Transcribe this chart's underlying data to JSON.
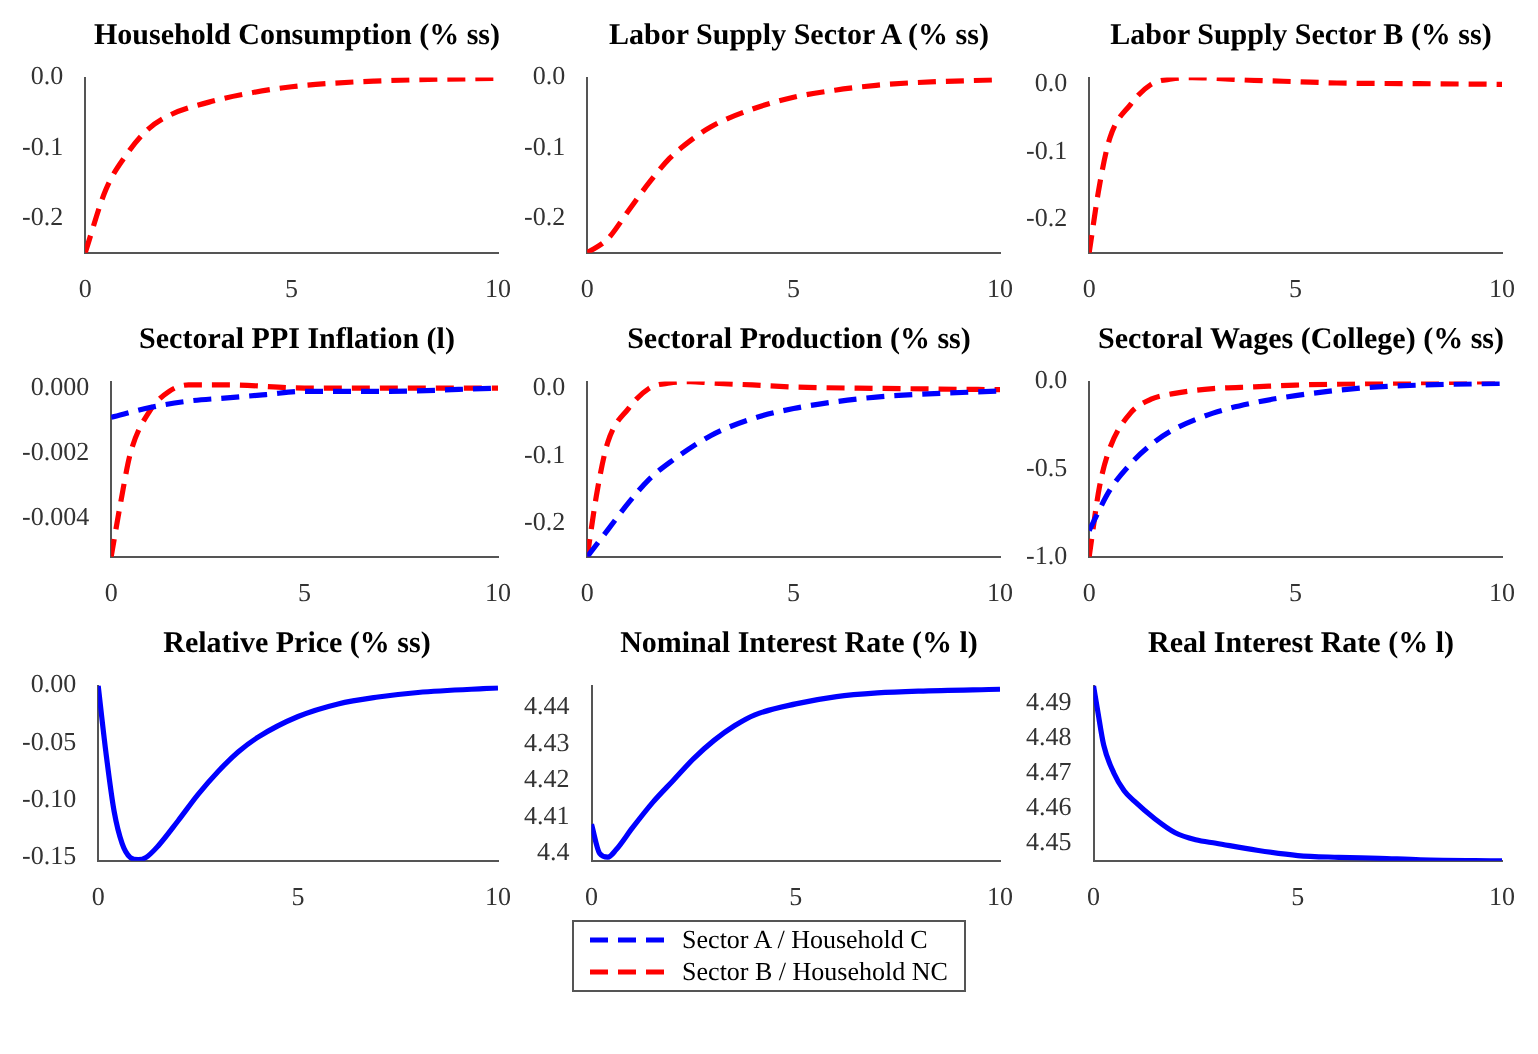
{
  "chart_data": [
    {
      "type": "line",
      "title": "Household Consumption (% ss)",
      "xlim": [
        0,
        10
      ],
      "xticks": [
        0,
        5,
        10
      ],
      "ylim": [
        -0.25,
        0.0
      ],
      "yticks": [
        -0.2,
        -0.1,
        {
          "value": 0,
          "label": "0.0"
        }
      ],
      "grid": false,
      "marker": "none",
      "legend": false,
      "series": [
        {
          "color": "#ff0000",
          "line_style": "dashed",
          "x": [
            0,
            0.5,
            1,
            1.5,
            2,
            3,
            4,
            5,
            6,
            7,
            8,
            10
          ],
          "values": [
            -0.25,
            -0.16,
            -0.11,
            -0.075,
            -0.055,
            -0.035,
            -0.022,
            -0.013,
            -0.008,
            -0.005,
            -0.003,
            -0.001
          ]
        }
      ]
    },
    {
      "type": "line",
      "title": "Labor Supply Sector A (% ss)",
      "xlim": [
        0,
        10
      ],
      "xticks": [
        0,
        5,
        10
      ],
      "ylim": [
        -0.25,
        0.0
      ],
      "yticks": [
        -0.2,
        -0.1,
        {
          "value": 0,
          "label": "0.0"
        }
      ],
      "grid": false,
      "marker": "none",
      "legend": false,
      "series": [
        {
          "color": "#ff0000",
          "line_style": "dashed",
          "x": [
            0,
            0.5,
            1,
            1.5,
            2,
            2.5,
            3,
            4,
            5,
            6,
            7,
            8,
            10
          ],
          "values": [
            -0.25,
            -0.23,
            -0.19,
            -0.15,
            -0.115,
            -0.09,
            -0.07,
            -0.045,
            -0.028,
            -0.018,
            -0.011,
            -0.007,
            -0.003
          ]
        }
      ]
    },
    {
      "type": "line",
      "title": "Labor Supply Sector B (% ss)",
      "xlim": [
        0,
        10
      ],
      "xticks": [
        0,
        5,
        10
      ],
      "ylim": [
        -0.25,
        0.01
      ],
      "yticks": [
        -0.2,
        -0.1,
        {
          "value": 0,
          "label": "0.0"
        }
      ],
      "grid": false,
      "marker": "none",
      "legend": false,
      "series": [
        {
          "color": "#ff0000",
          "line_style": "dashed",
          "x": [
            0,
            0.25,
            0.5,
            1,
            1.5,
            2,
            2.5,
            3,
            4,
            5,
            6,
            8,
            10
          ],
          "values": [
            -0.25,
            -0.15,
            -0.08,
            -0.03,
            0.0,
            0.008,
            0.01,
            0.009,
            0.006,
            0.004,
            0.002,
            0.001,
            0.0
          ]
        }
      ]
    },
    {
      "type": "line",
      "title": "Sectoral PPI Inflation (l)",
      "xlim": [
        0,
        10
      ],
      "xticks": [
        0,
        5,
        10
      ],
      "ylim": [
        -0.0052,
        0.0002
      ],
      "yticks": [
        -0.004,
        -0.002,
        {
          "value": 0,
          "label": "0.000"
        }
      ],
      "grid": false,
      "marker": "none",
      "legend": false,
      "series": [
        {
          "color": "#0000ff",
          "line_style": "dashed",
          "x": [
            0,
            1,
            2,
            3,
            4,
            5,
            7,
            10
          ],
          "values": [
            -0.0009,
            -0.0006,
            -0.0004,
            -0.0003,
            -0.0002,
            -0.0001,
            -0.0001,
            0.0
          ]
        },
        {
          "color": "#ff0000",
          "line_style": "dashed",
          "x": [
            0,
            0.25,
            0.5,
            1,
            1.5,
            2,
            2.5,
            3,
            5,
            10
          ],
          "values": [
            -0.0052,
            -0.0035,
            -0.002,
            -0.0007,
            -0.0001,
            0.0001,
            0.0001,
            0.0001,
            0.0,
            0.0
          ]
        }
      ]
    },
    {
      "type": "line",
      "title": "Sectoral Production (% ss)",
      "xlim": [
        0,
        10
      ],
      "xticks": [
        0,
        5,
        10
      ],
      "ylim": [
        -0.25,
        0.01
      ],
      "yticks": [
        -0.2,
        -0.1,
        {
          "value": 0,
          "label": "0.0"
        }
      ],
      "grid": false,
      "marker": "none",
      "legend": "bottom",
      "series": [
        {
          "name": "Sector A / Household C",
          "color": "#0000ff",
          "line_style": "dashed",
          "x": [
            0,
            0.5,
            1,
            1.5,
            2,
            3,
            4,
            5,
            6,
            7,
            8,
            10
          ],
          "values": [
            -0.25,
            -0.21,
            -0.17,
            -0.135,
            -0.11,
            -0.07,
            -0.045,
            -0.03,
            -0.02,
            -0.013,
            -0.009,
            -0.004
          ]
        },
        {
          "name": "Sector B / Household NC",
          "color": "#ff0000",
          "line_style": "dashed",
          "x": [
            0,
            0.25,
            0.5,
            1,
            1.5,
            2,
            2.5,
            3,
            4,
            5,
            7,
            10
          ],
          "values": [
            -0.25,
            -0.15,
            -0.08,
            -0.03,
            0.0,
            0.008,
            0.01,
            0.008,
            0.005,
            0.002,
            0.0,
            -0.002
          ]
        }
      ]
    },
    {
      "type": "line",
      "title": "Sectoral Wages (College) (% ss)",
      "xlim": [
        0,
        10
      ],
      "xticks": [
        0,
        5,
        10
      ],
      "ylim": [
        -1.0,
        0.0
      ],
      "yticks": [
        {
          "value": -1,
          "label": "-1.0"
        },
        -0.5,
        {
          "value": 0,
          "label": "0.0"
        }
      ],
      "grid": false,
      "marker": "none",
      "legend": false,
      "series": [
        {
          "color": "#0000ff",
          "line_style": "dashed",
          "x": [
            0,
            0.5,
            1,
            1.5,
            2,
            3,
            4,
            5,
            6,
            7,
            8,
            10
          ],
          "values": [
            -0.85,
            -0.62,
            -0.47,
            -0.36,
            -0.28,
            -0.18,
            -0.12,
            -0.08,
            -0.05,
            -0.03,
            -0.02,
            -0.01
          ]
        },
        {
          "color": "#ff0000",
          "line_style": "dashed",
          "x": [
            0,
            0.25,
            0.5,
            1,
            1.5,
            2,
            3,
            4,
            5,
            7,
            10
          ],
          "values": [
            -1.0,
            -0.6,
            -0.38,
            -0.18,
            -0.1,
            -0.07,
            -0.04,
            -0.03,
            -0.02,
            -0.01,
            0.0
          ]
        }
      ]
    },
    {
      "type": "line",
      "title": "Relative Price (% ss)",
      "xlim": [
        0,
        10
      ],
      "xticks": [
        0,
        5,
        10
      ],
      "ylim": [
        -0.153,
        0.0
      ],
      "yticks": [
        {
          "value": -0.15,
          "label": "-0.15"
        },
        {
          "value": -0.1,
          "label": "-0.10"
        },
        -0.05,
        {
          "value": 0,
          "label": "0.00"
        }
      ],
      "grid": false,
      "marker": "none",
      "legend": false,
      "series": [
        {
          "color": "#0000ff",
          "x": [
            0,
            0.2,
            0.4,
            0.6,
            0.8,
            1,
            1.2,
            1.5,
            2,
            2.5,
            3,
            3.5,
            4,
            5,
            6,
            7,
            8,
            10
          ],
          "values": [
            0,
            -0.06,
            -0.11,
            -0.138,
            -0.15,
            -0.152,
            -0.15,
            -0.14,
            -0.118,
            -0.095,
            -0.075,
            -0.058,
            -0.045,
            -0.027,
            -0.016,
            -0.01,
            -0.006,
            -0.002
          ]
        }
      ]
    },
    {
      "type": "line",
      "title": "Nominal Interest Rate (% l)",
      "xlim": [
        0,
        10
      ],
      "xticks": [
        0,
        5,
        10
      ],
      "ylim": [
        4.398,
        4.446
      ],
      "yticks": [
        4.4,
        4.41,
        4.42,
        4.43,
        4.44
      ],
      "grid": false,
      "marker": "none",
      "legend": false,
      "series": [
        {
          "color": "#0000ff",
          "x": [
            0,
            0.2,
            0.4,
            0.6,
            1,
            1.5,
            2,
            2.5,
            3,
            3.5,
            4,
            5,
            6,
            7,
            8,
            10
          ],
          "values": [
            4.408,
            4.4,
            4.399,
            4.401,
            4.407,
            4.414,
            4.42,
            4.426,
            4.431,
            4.435,
            4.438,
            4.441,
            4.443,
            4.444,
            4.4445,
            4.445
          ]
        }
      ]
    },
    {
      "type": "line",
      "title": "Real Interest Rate (% l)",
      "xlim": [
        0,
        10
      ],
      "xticks": [
        0,
        5,
        10
      ],
      "ylim": [
        4.445,
        4.495
      ],
      "yticks": [
        4.45,
        4.46,
        4.47,
        4.48,
        4.49
      ],
      "grid": false,
      "marker": "none",
      "legend": false,
      "series": [
        {
          "color": "#0000ff",
          "x": [
            0,
            0.1,
            0.25,
            0.5,
            0.75,
            1,
            1.5,
            2,
            2.5,
            3,
            4,
            5,
            6,
            7,
            8,
            10
          ],
          "values": [
            4.495,
            4.488,
            4.478,
            4.47,
            4.465,
            4.462,
            4.457,
            4.453,
            4.451,
            4.45,
            4.448,
            4.4465,
            4.446,
            4.4457,
            4.4453,
            4.445
          ]
        }
      ]
    }
  ]
}
